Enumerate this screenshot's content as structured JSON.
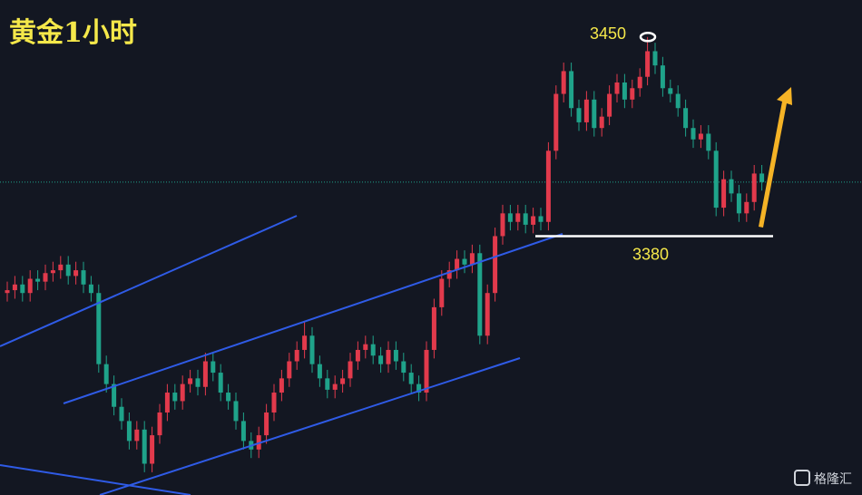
{
  "chart_data": {
    "type": "candlestick",
    "title": "黄金1小时",
    "ylim": [
      3289,
      3463
    ],
    "up_color": "#e23a4c",
    "down_color": "#1fa38a",
    "last_price_color": "#1fa38a",
    "annotations": [
      3450,
      3380
    ],
    "watermark": "格隆汇",
    "open": [
      3360,
      3361,
      3363,
      3360,
      3365,
      3364,
      3367,
      3368,
      3370,
      3366,
      3368,
      3363,
      3360,
      3335,
      3328,
      3320,
      3315,
      3308,
      3312,
      3300,
      3310,
      3318,
      3325,
      3322,
      3328,
      3330,
      3327,
      3336,
      3332,
      3325,
      3322,
      3315,
      3308,
      3305,
      3310,
      3318,
      3325,
      3330,
      3336,
      3340,
      3345,
      3335,
      3330,
      3326,
      3328,
      3330,
      3336,
      3340,
      3342,
      3338,
      3335,
      3340,
      3336,
      3332,
      3328,
      3325,
      3340,
      3355,
      3365,
      3368,
      3372,
      3370,
      3374,
      3345,
      3360,
      3380,
      3388,
      3385,
      3388,
      3384,
      3387,
      3385,
      3410,
      3430,
      3438,
      3425,
      3420,
      3428,
      3418,
      3422,
      3430,
      3434,
      3428,
      3432,
      3436,
      3445,
      3440,
      3432,
      3430,
      3425,
      3418,
      3414,
      3416,
      3410,
      3390,
      3400,
      3395,
      3388,
      3392,
      3402
    ],
    "high": [
      3364,
      3366,
      3366,
      3368,
      3368,
      3370,
      3371,
      3373,
      3373,
      3371,
      3371,
      3366,
      3363,
      3338,
      3331,
      3323,
      3318,
      3315,
      3315,
      3313,
      3321,
      3328,
      3328,
      3331,
      3333,
      3333,
      3339,
      3339,
      3335,
      3328,
      3325,
      3318,
      3311,
      3313,
      3321,
      3328,
      3333,
      3339,
      3343,
      3350,
      3348,
      3338,
      3333,
      3331,
      3333,
      3339,
      3343,
      3345,
      3345,
      3341,
      3343,
      3343,
      3339,
      3335,
      3331,
      3343,
      3358,
      3368,
      3371,
      3375,
      3375,
      3377,
      3377,
      3363,
      3383,
      3391,
      3391,
      3391,
      3391,
      3390,
      3390,
      3413,
      3433,
      3441,
      3441,
      3428,
      3431,
      3431,
      3425,
      3433,
      3437,
      3437,
      3435,
      3439,
      3450,
      3448,
      3443,
      3435,
      3433,
      3428,
      3421,
      3419,
      3419,
      3413,
      3403,
      3403,
      3398,
      3395,
      3405,
      3405
    ],
    "low": [
      3357,
      3358,
      3357,
      3357,
      3361,
      3361,
      3364,
      3365,
      3363,
      3363,
      3360,
      3357,
      3332,
      3325,
      3317,
      3312,
      3305,
      3305,
      3297,
      3297,
      3307,
      3315,
      3319,
      3319,
      3325,
      3324,
      3324,
      3329,
      3322,
      3319,
      3312,
      3305,
      3302,
      3302,
      3307,
      3315,
      3322,
      3327,
      3333,
      3337,
      3332,
      3327,
      3323,
      3323,
      3325,
      3327,
      3333,
      3337,
      3335,
      3332,
      3332,
      3333,
      3329,
      3325,
      3322,
      3322,
      3337,
      3352,
      3362,
      3365,
      3367,
      3367,
      3342,
      3342,
      3357,
      3377,
      3382,
      3382,
      3381,
      3381,
      3382,
      3382,
      3407,
      3427,
      3422,
      3417,
      3417,
      3415,
      3415,
      3419,
      3427,
      3425,
      3425,
      3429,
      3433,
      3437,
      3429,
      3427,
      3422,
      3415,
      3411,
      3411,
      3407,
      3387,
      3387,
      3392,
      3385,
      3385,
      3389,
      3396
    ],
    "close": [
      3361,
      3363,
      3360,
      3365,
      3364,
      3367,
      3368,
      3370,
      3366,
      3368,
      3363,
      3360,
      3335,
      3328,
      3320,
      3315,
      3308,
      3312,
      3300,
      3310,
      3318,
      3325,
      3322,
      3328,
      3330,
      3327,
      3336,
      3332,
      3325,
      3322,
      3315,
      3308,
      3305,
      3310,
      3318,
      3325,
      3330,
      3336,
      3340,
      3345,
      3335,
      3330,
      3326,
      3328,
      3330,
      3336,
      3340,
      3342,
      3338,
      3335,
      3340,
      3336,
      3332,
      3328,
      3325,
      3340,
      3355,
      3365,
      3368,
      3372,
      3370,
      3374,
      3345,
      3360,
      3380,
      3388,
      3385,
      3388,
      3384,
      3387,
      3385,
      3410,
      3430,
      3438,
      3425,
      3420,
      3428,
      3418,
      3422,
      3430,
      3434,
      3428,
      3432,
      3436,
      3445,
      3440,
      3432,
      3430,
      3425,
      3418,
      3414,
      3416,
      3410,
      3390,
      3400,
      3395,
      3388,
      3392,
      3402,
      3399
    ]
  }
}
